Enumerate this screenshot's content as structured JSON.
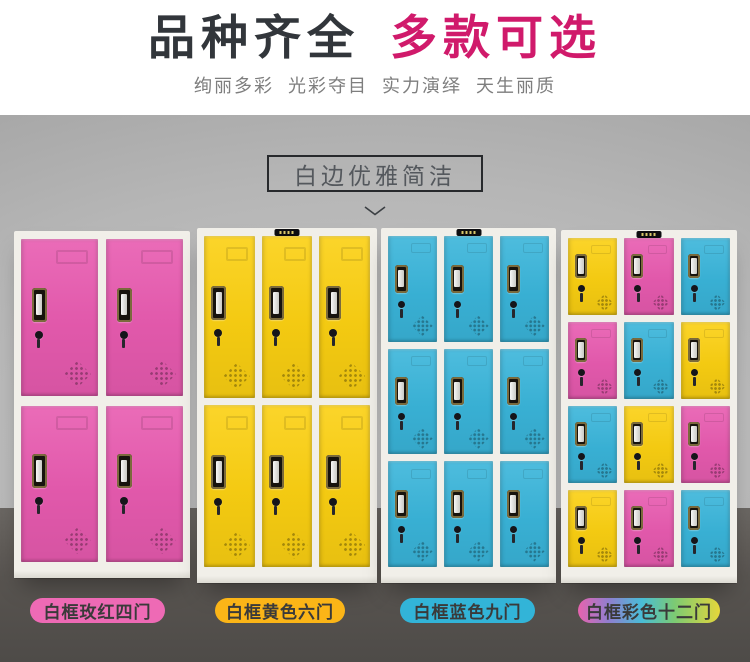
{
  "header": {
    "title_dark": "品种齐全",
    "title_accent": "多款可选",
    "subtitle": "绚丽多彩  光彩夺目  实力演绎  天生丽质"
  },
  "banner": {
    "label": "白边优雅简洁"
  },
  "colors": {
    "title_dark": "#32363b",
    "title_accent": "#d01a6b",
    "door_pink": "#e85bb0",
    "door_yellow": "#fbd012",
    "door_blue": "#3ab5da",
    "frame_white": "#f1efe9",
    "wall_gray": "#b6b6b6",
    "floor_gray": "#585450"
  },
  "pill_colors": {
    "pink": "#ee6ab5",
    "yellow": "#fbb517",
    "cyan": "#32b4d8",
    "rainbow": [
      "#e763ae",
      "#8f7fd0",
      "#49bdd6",
      "#7cca73",
      "#e5d63b"
    ]
  },
  "lockers": [
    {
      "name": "rose-4-door",
      "cols": 2,
      "rows": 2,
      "doors": [
        "pink",
        "pink",
        "pink",
        "pink"
      ],
      "logo": false,
      "label": "白框玫红四门",
      "pill": "pink"
    },
    {
      "name": "yellow-6-door",
      "cols": 3,
      "rows": 2,
      "doors": [
        "yellow",
        "yellow",
        "yellow",
        "yellow",
        "yellow",
        "yellow"
      ],
      "logo": true,
      "label": "白框黄色六门",
      "pill": "yellow"
    },
    {
      "name": "blue-9-door",
      "cols": 3,
      "rows": 3,
      "doors": [
        "blue",
        "blue",
        "blue",
        "blue",
        "blue",
        "blue",
        "blue",
        "blue",
        "blue"
      ],
      "logo": true,
      "label": "白框蓝色九门",
      "pill": "cyan"
    },
    {
      "name": "multicolor-12-door",
      "cols": 3,
      "rows": 4,
      "doors": [
        "yellow",
        "pink",
        "blue",
        "pink",
        "blue",
        "yellow",
        "blue",
        "yellow",
        "pink",
        "yellow",
        "pink",
        "blue"
      ],
      "logo": true,
      "label": "白框彩色十二门",
      "pill": "rainbow"
    }
  ]
}
